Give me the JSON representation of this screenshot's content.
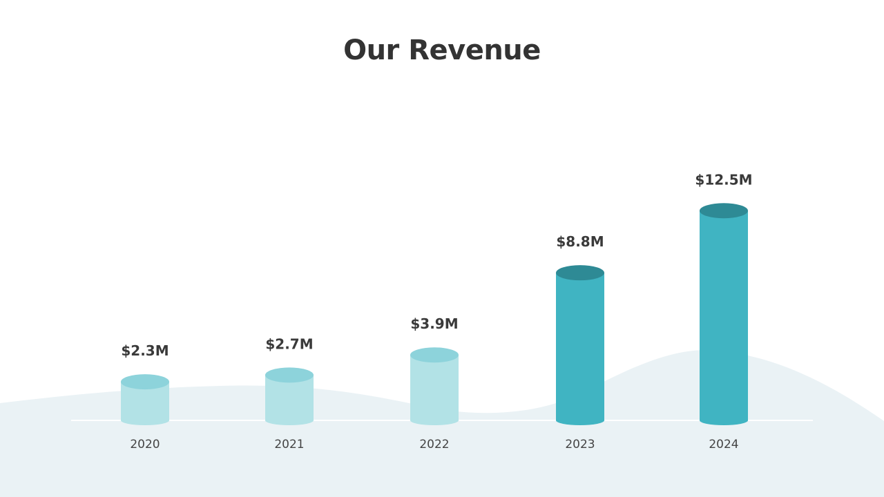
{
  "chart_data": {
    "type": "bar",
    "title": "Our Revenue",
    "categories": [
      "2020",
      "2021",
      "2022",
      "2023",
      "2024"
    ],
    "series": [
      {
        "values": [
          2.3,
          2.7,
          3.9,
          8.8,
          12.5
        ]
      }
    ],
    "data_labels": [
      "$2.3M",
      "$2.7M",
      "$3.9M",
      "$8.8M",
      "$12.5M"
    ],
    "xlabel": "",
    "ylabel": "",
    "unit": "$M",
    "grid": false,
    "legend": "none",
    "colors": {
      "light_body": "#b2e2e6",
      "light_top": "#8dd3db",
      "dark_body": "#40b4c2",
      "dark_top": "#2e8a95",
      "background_wave": "#eaf2f5",
      "baseline": "#ffffff",
      "title_text": "#333333"
    },
    "highlighted_categories": [
      "2023",
      "2024"
    ]
  }
}
